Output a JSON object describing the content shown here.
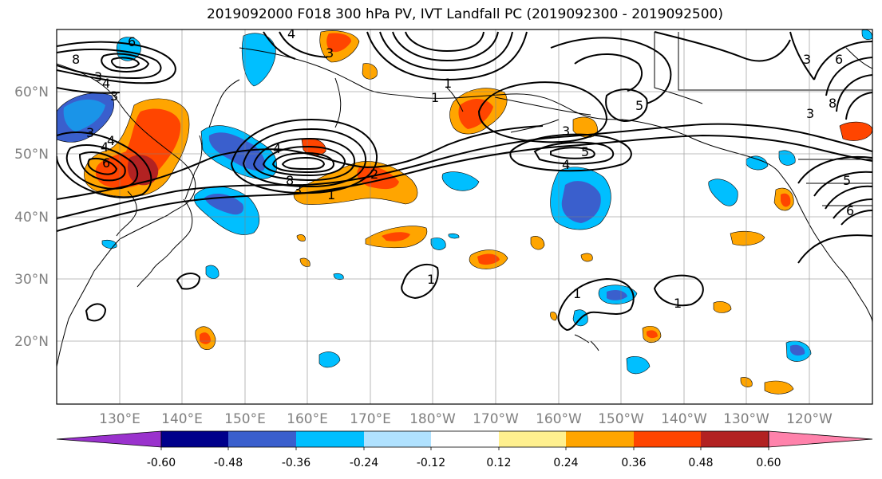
{
  "title": "2019092000 F018 300 hPa PV, IVT Landfall PC (2019092300 - 2019092500)",
  "lat_labels": [
    "60°N",
    "50°N",
    "40°N",
    "30°N",
    "20°N"
  ],
  "lon_labels": [
    "130°E",
    "140°E",
    "150°E",
    "160°E",
    "170°E",
    "180°W",
    "170°W",
    "160°W",
    "150°W",
    "140°W",
    "130°W",
    "120°W"
  ],
  "colorbar": {
    "colors": [
      "#9a32cd",
      "#00008b",
      "#3a5fcd",
      "#00bfff",
      "#b0e2ff",
      "#ffffff",
      "#fff08f",
      "#ffa500",
      "#ff4500",
      "#b22222",
      "#ff82ab"
    ],
    "tick_labels": [
      "-0.60",
      "-0.48",
      "-0.36",
      "-0.24",
      "-0.12",
      "0.12",
      "0.24",
      "0.36",
      "0.48",
      "0.60"
    ]
  },
  "contour_labels": [
    "8",
    "3",
    "4",
    "3",
    "6",
    "4",
    "6",
    "3",
    "4",
    "8",
    "3",
    "4",
    "1",
    "2",
    "1",
    "1",
    "5",
    "3",
    "4",
    "5",
    "1",
    "1",
    "1",
    "3",
    "6",
    "8",
    "3",
    "5",
    "6",
    "3",
    "4"
  ],
  "icons": {
    "colorbar_ends": "triangle-arrow"
  }
}
